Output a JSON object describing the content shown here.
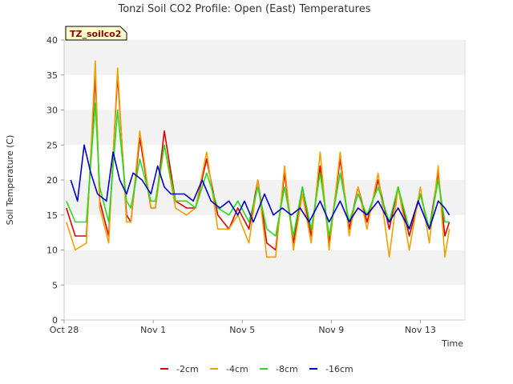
{
  "chart_data": {
    "type": "line",
    "title": "Tonzi Soil CO2 Profile: Open (East) Temperatures",
    "tag": "TZ_soilco2",
    "xlabel": "Time",
    "ylabel": "Soil Temperature (C)",
    "x_ticks": [
      "Oct 28",
      "Nov 1",
      "Nov 5",
      "Nov 9",
      "Nov 13"
    ],
    "y_ticks": [
      "0",
      "5",
      "10",
      "15",
      "20",
      "25",
      "30",
      "35",
      "40"
    ],
    "xlim": [
      0,
      18
    ],
    "ylim": [
      0,
      40
    ],
    "grid": "horizontal bands",
    "legend_position": "bottom",
    "series": [
      {
        "name": "-2cm",
        "color": "#dd0000",
        "x": [
          0.1,
          0.5,
          1.0,
          1.4,
          1.6,
          2.0,
          2.4,
          2.8,
          3.0,
          3.4,
          3.9,
          4.1,
          4.5,
          5.0,
          5.5,
          5.9,
          6.4,
          6.9,
          7.4,
          7.8,
          8.3,
          8.7,
          9.1,
          9.5,
          9.9,
          10.3,
          10.7,
          11.1,
          11.5,
          11.9,
          12.4,
          12.8,
          13.2,
          13.6,
          14.1,
          14.6,
          15.0,
          15.5,
          16.0,
          16.4,
          16.8,
          17.1,
          17.3
        ],
        "y": [
          16,
          12,
          12,
          35,
          17,
          12,
          35,
          15,
          14,
          26,
          16,
          16,
          27,
          17,
          16,
          16,
          23,
          15,
          13,
          16,
          13,
          20,
          11,
          10,
          21,
          11,
          19,
          12,
          22,
          11,
          23,
          13,
          19,
          14,
          20,
          13,
          19,
          12,
          18,
          13,
          21,
          12,
          14
        ]
      },
      {
        "name": "-4cm",
        "color": "#f0a000",
        "x": [
          0.1,
          0.5,
          1.0,
          1.4,
          1.6,
          2.0,
          2.4,
          2.8,
          3.0,
          3.4,
          3.9,
          4.1,
          4.5,
          5.0,
          5.5,
          5.9,
          6.4,
          6.9,
          7.4,
          7.8,
          8.3,
          8.7,
          9.1,
          9.5,
          9.9,
          10.3,
          10.7,
          11.1,
          11.5,
          11.9,
          12.4,
          12.8,
          13.2,
          13.6,
          14.1,
          14.6,
          15.0,
          15.5,
          16.0,
          16.4,
          16.8,
          17.1,
          17.3
        ],
        "y": [
          14,
          10,
          11,
          37,
          16,
          11,
          36,
          14,
          14,
          27,
          16,
          16,
          25,
          16,
          15,
          16,
          24,
          13,
          13,
          15,
          11,
          20,
          9,
          9,
          22,
          10,
          18,
          11,
          24,
          10,
          24,
          12,
          19,
          13,
          21,
          9,
          19,
          10,
          19,
          11,
          22,
          9,
          13
        ]
      },
      {
        "name": "-8cm",
        "color": "#22dd22",
        "x": [
          0.1,
          0.5,
          1.0,
          1.4,
          1.6,
          2.0,
          2.4,
          2.8,
          3.0,
          3.4,
          3.9,
          4.1,
          4.5,
          5.0,
          5.5,
          5.9,
          6.4,
          6.9,
          7.4,
          7.8,
          8.3,
          8.7,
          9.1,
          9.5,
          9.9,
          10.3,
          10.7,
          11.1,
          11.5,
          11.9,
          12.4,
          12.8,
          13.2,
          13.6,
          14.1,
          14.6,
          15.0,
          15.5,
          16.0,
          16.4,
          16.8,
          17.1,
          17.3
        ],
        "y": [
          17,
          14,
          14,
          31,
          19,
          14,
          30,
          17,
          16,
          23,
          17,
          17,
          25,
          17,
          17,
          16,
          21,
          16,
          15,
          17,
          14,
          19,
          13,
          12,
          19,
          12,
          19,
          13,
          21,
          12,
          21,
          14,
          18,
          15,
          19,
          14,
          19,
          13,
          18,
          13,
          20,
          14,
          14
        ]
      },
      {
        "name": "-16cm",
        "color": "#0000cc",
        "x": [
          0.3,
          0.6,
          0.9,
          1.2,
          1.5,
          1.9,
          2.2,
          2.5,
          2.8,
          3.1,
          3.5,
          3.9,
          4.2,
          4.5,
          4.8,
          5.4,
          5.8,
          6.2,
          6.6,
          7.0,
          7.4,
          7.8,
          8.1,
          8.5,
          9.0,
          9.4,
          9.8,
          10.2,
          10.6,
          11.0,
          11.5,
          11.9,
          12.4,
          12.8,
          13.2,
          13.6,
          14.1,
          14.6,
          15.0,
          15.5,
          15.9,
          16.4,
          16.8,
          17.1,
          17.3
        ],
        "y": [
          20,
          17,
          25,
          21,
          18,
          17,
          24,
          20,
          18,
          21,
          20,
          18,
          22,
          19,
          18,
          18,
          17,
          20,
          17,
          16,
          17,
          15,
          17,
          14,
          18,
          15,
          16,
          15,
          16,
          14,
          17,
          14,
          17,
          14,
          16,
          15,
          17,
          14,
          16,
          13,
          17,
          13,
          17,
          16,
          15
        ]
      }
    ]
  }
}
